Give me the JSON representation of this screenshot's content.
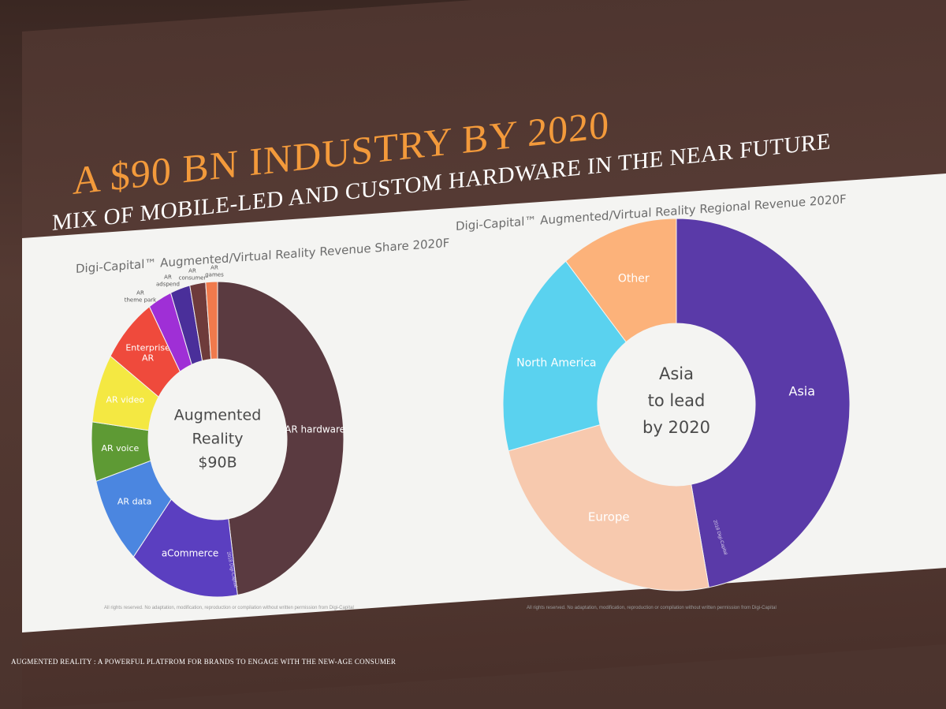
{
  "slide": {
    "title": "A $90 BN INDUSTRY BY 2020",
    "subtitle": "MIX OF MOBILE-LED AND CUSTOM HARDWARE IN THE NEAR FUTURE",
    "footer": "AUGMENTED REALITY : A POWERFUL PLATFROM FOR BRANDS TO ENGAGE WITH THE NEW-AGE CONSUMER",
    "footnote": "All rights reserved. No adaptation, modification, reproduction or compilation without written permission from Digi-Capital",
    "credit": "2018 Digi-Capital"
  },
  "chart_data": [
    {
      "type": "pie",
      "title": "Digi-Capital™ Augmented/Virtual Reality Revenue Share 2020F",
      "center_label": [
        "Augmented",
        "Reality",
        "$90B"
      ],
      "categories": [
        "AR hardware",
        "aCommerce",
        "AR data",
        "AR voice",
        "AR video",
        "Enterprise AR",
        "AR theme park",
        "AR adspend",
        "AR consumer",
        "AR games"
      ],
      "values": [
        47,
        14,
        9,
        6,
        7,
        7,
        3,
        2.5,
        2,
        1.5
      ],
      "colors": [
        "#5a3a40",
        "#5b3fc0",
        "#4b86e0",
        "#5e9a34",
        "#f4e842",
        "#ef4a3c",
        "#9f2fd6",
        "#4a2f9a",
        "#6e3b3b",
        "#f07a4c"
      ]
    },
    {
      "type": "pie",
      "title": "Digi-Capital™ Augmented/Virtual Reality Regional Revenue 2020F",
      "center_label": [
        "Asia",
        "to lead",
        "by 2020"
      ],
      "categories": [
        "Asia",
        "Europe",
        "North America",
        "Other"
      ],
      "values": [
        47,
        24,
        18,
        11
      ],
      "colors": [
        "#5a3aa8",
        "#f7c9ae",
        "#5ad2ef",
        "#fcb27a"
      ]
    }
  ]
}
